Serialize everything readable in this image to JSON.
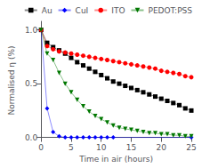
{
  "chart_data": {
    "type": "line",
    "xlabel": "Time in air (hours)",
    "ylabel": "Normalised η (%)",
    "xlim": [
      0,
      25
    ],
    "xticks": [
      0,
      5,
      10,
      15,
      20,
      25
    ],
    "ylim": [
      -0.02,
      1.08
    ],
    "yticks": [
      {
        "value": 0,
        "label": "0.0"
      },
      0.5,
      {
        "value": 1,
        "label": "1.0"
      }
    ],
    "grid": false,
    "legend": "upper right",
    "series": [
      {
        "name": "Au",
        "color": "#000000",
        "marker": "square",
        "x": [
          0,
          1,
          2,
          3,
          4,
          5,
          6,
          7,
          8,
          9,
          10,
          11,
          12,
          13,
          14,
          15,
          16,
          17,
          18,
          19,
          20,
          21,
          22,
          23,
          24,
          25
        ],
        "values": [
          1.0,
          0.88,
          0.84,
          0.81,
          0.78,
          0.74,
          0.7,
          0.67,
          0.64,
          0.61,
          0.58,
          0.55,
          0.52,
          0.5,
          0.48,
          0.46,
          0.44,
          0.42,
          0.4,
          0.38,
          0.36,
          0.34,
          0.32,
          0.3,
          0.27,
          0.25
        ]
      },
      {
        "name": "CuI",
        "color": "#0000ff",
        "marker": "diamond",
        "x": [
          0,
          1,
          2,
          3,
          4,
          5,
          6,
          7,
          8,
          9,
          10,
          11,
          12,
          25
        ],
        "values": [
          1.0,
          0.27,
          0.05,
          0.01,
          0.0,
          0.0,
          0.0,
          0.0,
          0.0,
          0.0,
          0.0,
          0.0,
          0.0,
          0.0
        ]
      },
      {
        "name": "ITO",
        "color": "#ff0000",
        "marker": "circle",
        "x": [
          0,
          1,
          2,
          3,
          4,
          5,
          6,
          7,
          8,
          9,
          10,
          11,
          12,
          13,
          14,
          15,
          16,
          17,
          18,
          19,
          20,
          21,
          22,
          23,
          24,
          25
        ],
        "values": [
          1.0,
          0.85,
          0.82,
          0.8,
          0.79,
          0.78,
          0.77,
          0.76,
          0.75,
          0.74,
          0.73,
          0.72,
          0.71,
          0.7,
          0.69,
          0.68,
          0.67,
          0.66,
          0.65,
          0.64,
          0.62,
          0.61,
          0.6,
          0.59,
          0.57,
          0.56
        ]
      },
      {
        "name": "PEDOT:PSS",
        "color": "#007700",
        "marker": "triangle_down",
        "x": [
          0,
          1,
          2,
          3,
          4,
          5,
          6,
          7,
          8,
          9,
          10,
          11,
          12,
          13,
          14,
          15,
          16,
          17,
          18,
          19,
          20,
          21,
          22,
          23,
          24,
          25
        ],
        "values": [
          1.0,
          0.78,
          0.72,
          0.6,
          0.5,
          0.42,
          0.35,
          0.29,
          0.24,
          0.2,
          0.17,
          0.14,
          0.11,
          0.09,
          0.08,
          0.07,
          0.06,
          0.05,
          0.04,
          0.04,
          0.03,
          0.03,
          0.02,
          0.02,
          0.01,
          0.01
        ]
      }
    ]
  }
}
